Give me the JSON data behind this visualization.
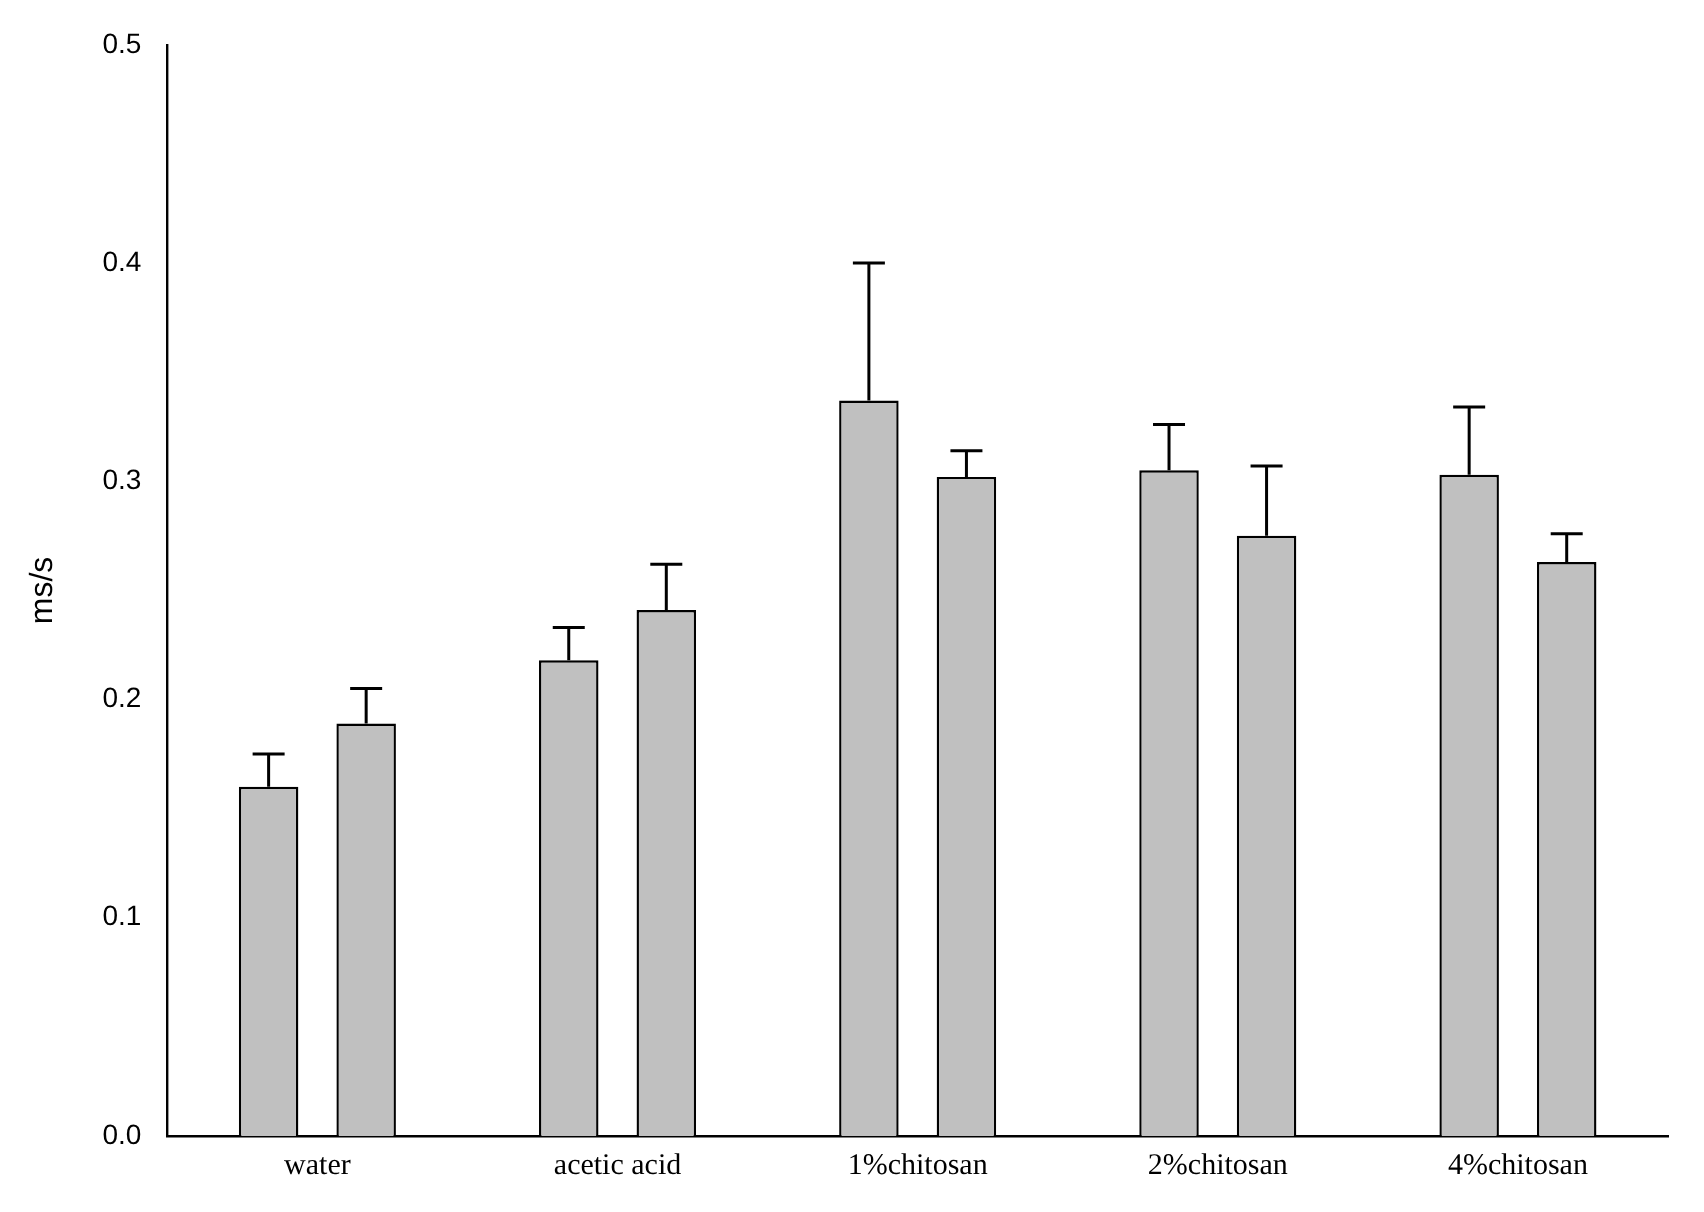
{
  "chart_data": {
    "type": "bar",
    "ylabel": "ms/s",
    "categories": [
      "water",
      "acetic acid",
      "1%chitosan",
      "2%chitosan",
      "4%chitosan"
    ],
    "series": [
      {
        "color": "#c0c0c0",
        "values": [
          0.16,
          0.218,
          0.337,
          0.305,
          0.303
        ],
        "errors": [
          [
            0.16,
            0.175
          ],
          [
            0.218,
            0.233
          ],
          [
            0.337,
            0.4
          ],
          [
            0.305,
            0.326
          ],
          [
            0.303,
            0.334
          ]
        ]
      },
      {
        "color": "#c0c0c0",
        "values": [
          0.189,
          0.241,
          0.302,
          0.275,
          0.263
        ],
        "errors": [
          [
            0.189,
            0.205
          ],
          [
            0.241,
            0.262
          ],
          [
            0.302,
            0.314
          ],
          [
            0.275,
            0.307
          ],
          [
            0.263,
            0.276
          ]
        ]
      }
    ],
    "ylim": [
      0,
      0.5
    ],
    "yticks": [
      {
        "value": 0,
        "label": "0.0"
      },
      {
        "value": 0.1,
        "label": "0.1"
      },
      {
        "value": 0.2,
        "label": "0.2"
      },
      {
        "value": 0.3,
        "label": "0.3"
      },
      {
        "value": 0.4,
        "label": "0.4"
      },
      {
        "value": 0.5,
        "label": "0.5"
      }
    ],
    "grid": false,
    "legend": false
  }
}
